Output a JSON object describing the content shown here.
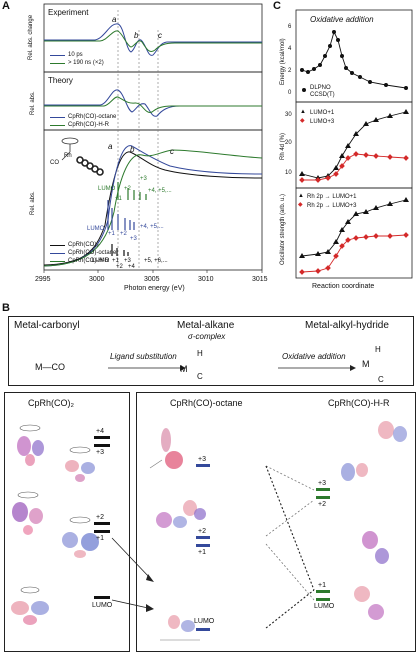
{
  "panel_labels": {
    "a": "A",
    "b": "B",
    "c": "C"
  },
  "panelA": {
    "experiment": {
      "title": "Experiment",
      "legend": [
        "10 ps",
        "> 190 ns (×2)"
      ],
      "ylabel": "Rel. abs. change"
    },
    "theory": {
      "title": "Theory",
      "legend": [
        "CpRh(CO)-octane",
        "CpRh(CO)-H-R"
      ],
      "ylabel": "Rel. abs."
    },
    "spectra": {
      "ylabel": "Rel. abs.",
      "legend": [
        "CpRh(CO)₂",
        "CpRh(CO)-octane",
        "CpRh(CO)-H-R"
      ],
      "mol_labels": [
        "Rh",
        "CO"
      ],
      "blue_labels": [
        "LUMO",
        "+1",
        "+2",
        "+3",
        "+4, +5,..."
      ],
      "green_labels": [
        "LUMO",
        "+1",
        "+2",
        "+3",
        "+4, +5,..."
      ],
      "black_labels": [
        "LUMO",
        "+1",
        "+3",
        "+2",
        "+4",
        "+5, +6,..."
      ]
    },
    "peaks": [
      "a",
      "b",
      "c"
    ],
    "xlabel": "Photon energy (eV)",
    "xticks": [
      "2995",
      "3000",
      "3005",
      "3010",
      "3015"
    ]
  },
  "panelC": {
    "title": "Oxidative addition",
    "energy_ylabel": "Energy (kcal/mol)",
    "energy_yticks": [
      "0",
      "2",
      "4",
      "6"
    ],
    "energy_legend": [
      "DLPNO",
      "CCSD(T)"
    ],
    "rh4d_ylabel": "Rh 4d (%)",
    "rh4d_yticks": [
      "10",
      "20",
      "30"
    ],
    "rh4d_legend": [
      "LUMO+1",
      "LUMO+3"
    ],
    "osc_ylabel": "Oscillator strength (arb. u.)",
    "osc_legend": [
      "Rh 2p → LUMO+1",
      "Rh 2p → LUMO+3"
    ],
    "xlabel": "Reaction coordinate"
  },
  "scheme": {
    "metal_carbonyl": "Metal-carbonyl",
    "metal_alkane": "Metal-alkane",
    "sigma_complex": "σ-complex",
    "metal_alkyl_hydride": "Metal-alkyl-hydride",
    "ligand_substitution": "Ligand substitution",
    "oxidative_addition": "Oxidative addition",
    "m_co": "M—CO",
    "m_alkane_m": "M",
    "m_alkane_h": "H",
    "m_alkane_c": "C",
    "m_hydride_m": "M",
    "m_hydride_h": "H",
    "m_hydride_c": "C"
  },
  "orbitals": {
    "cprh_co2": "CpRh(CO)₂",
    "cprh_octane": "CpRh(CO)-octane",
    "cprh_hr": "CpRh(CO)-H-R",
    "left_levels": [
      "+4",
      "+3",
      "+2",
      "+1",
      "LUMO"
    ],
    "octane_levels": [
      "+3",
      "+2",
      "+1",
      "LUMO"
    ],
    "hr_levels": [
      "+3",
      "+2",
      "+1",
      "LUMO"
    ]
  },
  "chart_data": [
    {
      "type": "line",
      "title": "Energy (kcal/mol)",
      "x": [
        1,
        2,
        3,
        4,
        5,
        6,
        7,
        8,
        9,
        10,
        11,
        12,
        13,
        14,
        15
      ],
      "series": [
        {
          "name": "DLPNO CCSD(T)",
          "values": [
            0.1,
            -0.2,
            0.3,
            1.0,
            2.2,
            4.0,
            6.2,
            5.2,
            2.2,
            0.4,
            -0.4,
            -1.2,
            -1.8,
            -2.2,
            -2.5
          ]
        }
      ]
    },
    {
      "type": "line",
      "title": "Rh 4d (%)",
      "series": [
        {
          "name": "LUMO+1",
          "values": [
            7,
            5,
            5,
            8,
            12,
            16,
            22,
            26,
            27,
            28,
            29
          ]
        },
        {
          "name": "LUMO+3",
          "values": [
            5,
            5,
            6,
            7,
            10,
            14,
            16,
            16,
            15.5,
            15,
            14.5
          ]
        }
      ]
    },
    {
      "type": "line",
      "title": "Oscillator strength (arb. u.)",
      "series": [
        {
          "name": "Rh 2p → LUMO+1",
          "values": [
            0.22,
            0.23,
            0.25,
            0.35,
            0.5,
            0.62,
            0.7,
            0.75,
            0.78,
            0.8,
            0.85
          ]
        },
        {
          "name": "Rh 2p → LUMO+3",
          "values": [
            0.05,
            0.06,
            0.08,
            0.2,
            0.32,
            0.38,
            0.4,
            0.42,
            0.43,
            0.44,
            0.45
          ]
        }
      ]
    }
  ]
}
